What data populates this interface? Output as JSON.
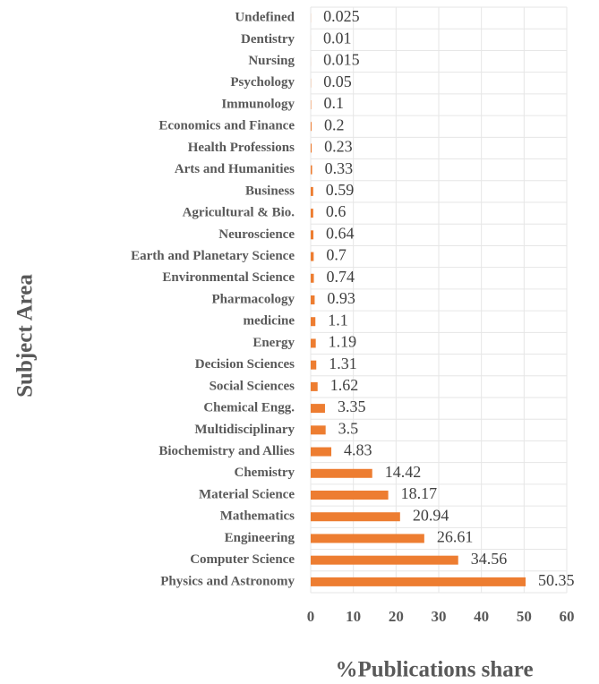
{
  "chart_data": {
    "type": "hbar",
    "categories": [
      "Undefined",
      "Dentistry",
      "Nursing",
      "Psychology",
      "Immunology",
      "Economics and Finance",
      "Health Professions",
      "Arts and Humanities",
      "Business",
      "Agricultural & Bio.",
      "Neuroscience",
      "Earth and Planetary Science",
      "Environmental Science",
      "Pharmacology",
      "medicine",
      "Energy",
      "Decision Sciences",
      "Social Sciences",
      "Chemical Engg.",
      "Multidisciplinary",
      "Biochemistry and Allies",
      "Chemistry",
      "Material Science",
      "Mathematics",
      "Engineering",
      "Computer Science",
      "Physics and Astronomy"
    ],
    "values": [
      0.025,
      0.01,
      0.015,
      0.05,
      0.1,
      0.2,
      0.23,
      0.33,
      0.59,
      0.6,
      0.64,
      0.7,
      0.74,
      0.93,
      1.1,
      1.19,
      1.31,
      1.62,
      3.35,
      3.5,
      4.83,
      14.42,
      18.17,
      20.94,
      26.61,
      34.56,
      50.35
    ],
    "color": "#ed7d31",
    "xlabel": "%Publications share",
    "ylabel": "Subject Area",
    "xlim": [
      0,
      60
    ],
    "xticks": [
      0,
      10,
      20,
      30,
      40,
      50,
      60
    ],
    "grid": true
  }
}
